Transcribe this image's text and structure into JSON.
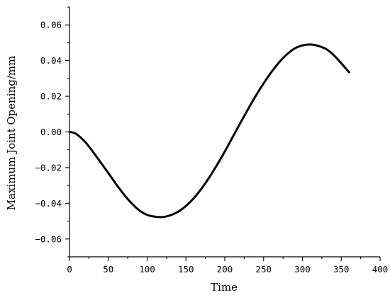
{
  "chart_data": {
    "type": "line",
    "title": "",
    "xlabel": "Time",
    "ylabel": "Maximum Joint Opening/mm",
    "xlim": [
      0,
      400
    ],
    "ylim": [
      -0.07,
      0.07
    ],
    "x_ticks": [
      0,
      50,
      100,
      150,
      200,
      250,
      300,
      350,
      400
    ],
    "y_ticks": [
      -0.06,
      -0.04,
      -0.02,
      0.0,
      0.02,
      0.04,
      0.06
    ],
    "x_tick_labels": [
      "0",
      "50",
      "100",
      "150",
      "200",
      "250",
      "300",
      "350",
      "400"
    ],
    "y_tick_labels": [
      "−0.06",
      "−0.04",
      "−0.02",
      "0.00",
      "0.02",
      "0.04",
      "0.06"
    ],
    "grid": false,
    "legend": "none",
    "series": [
      {
        "color": "#000000",
        "x": [
          0,
          5,
          10,
          20,
          30,
          40,
          50,
          60,
          70,
          80,
          90,
          100,
          110,
          120,
          130,
          140,
          150,
          160,
          170,
          180,
          190,
          200,
          210,
          220,
          230,
          240,
          250,
          260,
          270,
          280,
          290,
          300,
          308,
          315,
          320,
          330,
          340,
          350,
          355,
          360
        ],
        "y": [
          0.0,
          -0.0004,
          -0.0015,
          -0.0055,
          -0.011,
          -0.017,
          -0.023,
          -0.0292,
          -0.035,
          -0.04,
          -0.044,
          -0.0465,
          -0.0475,
          -0.0477,
          -0.0467,
          -0.0447,
          -0.0415,
          -0.0372,
          -0.0318,
          -0.0255,
          -0.0185,
          -0.011,
          -0.003,
          0.005,
          0.0128,
          0.0203,
          0.0272,
          0.0335,
          0.039,
          0.0435,
          0.0468,
          0.0485,
          0.049,
          0.0488,
          0.0483,
          0.0466,
          0.0432,
          0.0385,
          0.036,
          0.0335
        ]
      }
    ]
  }
}
